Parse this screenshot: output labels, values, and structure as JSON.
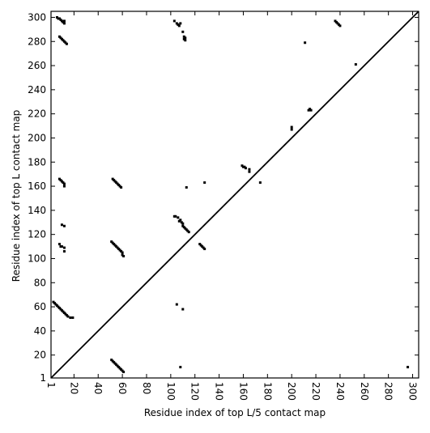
{
  "chart_data": {
    "type": "scatter",
    "xlabel": "Residue index of top L/5 contact map",
    "ylabel": "Residue index of top L contact map",
    "color": "#000000",
    "xlim": [
      1,
      305
    ],
    "ylim": [
      1,
      305
    ],
    "xticks": [
      1,
      20,
      40,
      60,
      80,
      100,
      120,
      140,
      160,
      180,
      200,
      220,
      240,
      260,
      280,
      300
    ],
    "yticks": [
      1,
      20,
      40,
      60,
      80,
      100,
      120,
      140,
      160,
      180,
      200,
      220,
      240,
      260,
      280,
      300
    ],
    "x": [
      6,
      7,
      8,
      9,
      10,
      11,
      12,
      12,
      8,
      9,
      10,
      11,
      12,
      13,
      14,
      103,
      105,
      106,
      107,
      108,
      110,
      111,
      112,
      111,
      112,
      211,
      236,
      237,
      238,
      239,
      240,
      253,
      214,
      215,
      216,
      200,
      200,
      159,
      160,
      161,
      162,
      165,
      165,
      174,
      128,
      113,
      8,
      9,
      10,
      11,
      12,
      12,
      52,
      53,
      54,
      55,
      56,
      57,
      58,
      59,
      103,
      104,
      106,
      108,
      107,
      109,
      110,
      110,
      111,
      112,
      113,
      114,
      115,
      10,
      12,
      8,
      9,
      10,
      12,
      12,
      51,
      52,
      53,
      54,
      55,
      56,
      57,
      58,
      59,
      60,
      60,
      61,
      124,
      125,
      126,
      127,
      128,
      3,
      4,
      5,
      6,
      7,
      8,
      9,
      10,
      11,
      12,
      13,
      14,
      15,
      17,
      19,
      105,
      110,
      51,
      52,
      53,
      54,
      55,
      56,
      57,
      58,
      59,
      60,
      61,
      108,
      296
    ],
    "y": [
      300,
      299,
      299,
      298,
      297,
      296,
      297,
      295,
      284,
      283,
      282,
      281,
      280,
      279,
      278,
      297,
      295,
      294,
      293,
      295,
      288,
      284,
      283,
      282,
      281,
      279,
      297,
      296,
      295,
      294,
      293,
      261,
      223,
      224,
      223,
      209,
      207,
      177,
      176,
      176,
      175,
      174,
      172,
      163,
      163,
      159,
      166,
      165,
      164,
      163,
      162,
      160,
      166,
      165,
      164,
      163,
      162,
      161,
      160,
      159,
      135,
      135,
      134,
      132,
      131,
      130,
      129,
      127,
      126,
      125,
      124,
      123,
      122,
      128,
      127,
      112,
      110,
      110,
      109,
      106,
      114,
      113,
      112,
      111,
      110,
      109,
      108,
      107,
      106,
      105,
      103,
      102,
      112,
      111,
      110,
      109,
      108,
      64,
      63,
      62,
      61,
      60,
      59,
      58,
      57,
      56,
      55,
      54,
      53,
      52,
      51,
      51,
      62,
      58,
      16,
      15,
      14,
      13,
      12,
      11,
      10,
      9,
      8,
      7,
      6,
      10,
      10
    ]
  }
}
